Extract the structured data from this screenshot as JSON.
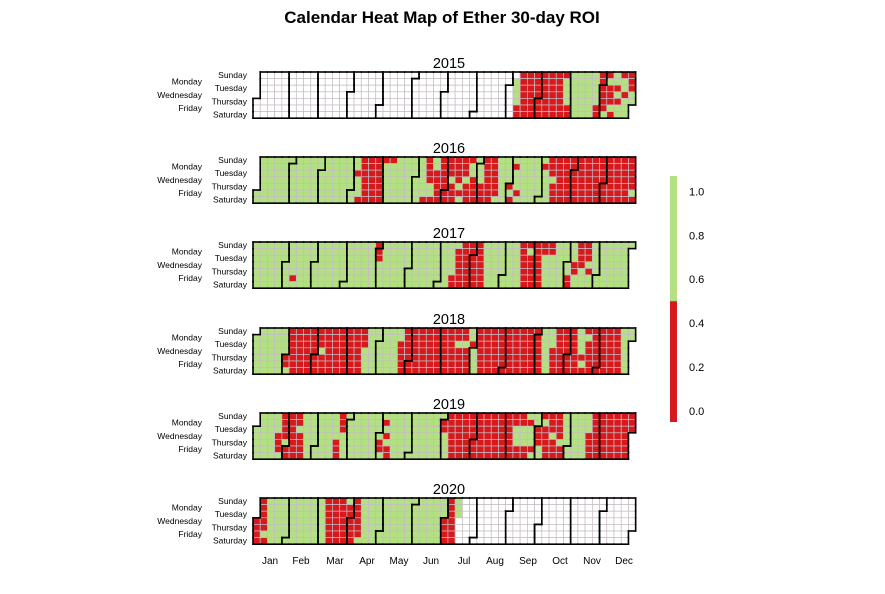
{
  "chart_data": {
    "type": "heatmap",
    "title": "Calendar Heat Map of Ether 30-day ROI",
    "weekday_labels": [
      "Sunday",
      "Monday",
      "Tuesday",
      "Wednesday",
      "Thursday",
      "Friday",
      "Saturday"
    ],
    "month_labels": [
      "Jan",
      "Feb",
      "Mar",
      "Apr",
      "May",
      "Jun",
      "Jul",
      "Aug",
      "Sep",
      "Oct",
      "Nov",
      "Dec"
    ],
    "value_key": {
      "g": "ROI above 0.5 (green)",
      "r": "ROI below 0.5 (red)",
      "-": "no data"
    },
    "years": [
      {
        "year": 2015,
        "weeks": "------- ------- ------- ------- ------- ------- ------- ------- ------- ------- ------- ------- ------- ------- ------- ------- ------- ------- ------- ------- ------- ------- ------- ------- ------- ------- ------- ------- ------- ------- ------- ------- ------- ------- ------- ------- -ggggrr rrrrrrr rrrrrrr rrrrrrr rrrrrrr rrrrrrr rrrrrrr rggggrr ggggggg ggggggg ggggggg gggggrr rrrrrrg rgrrrgr ggrgrgg rggrggg rrrgg--"
      },
      {
        "year": 2016,
        "weeks": "ggggggg ggggggg ggggggg ggggggg ggggggg ggggggg ggggggg ggggggg ggggggg ggggggg ggggggg ggggggg ggggggg ggggggg ggrgggr rrrrrrr rrrrrrr rrrrrrr rgggggg rgggggg ggggggg ggggggg ggggggg ggggggr rrrrggr ggrrrrr rrrrrrr rrrgrrr rrrrgrg rrrgrrr rggrrrr ggggrrr rrrrrrr rrrrrrg ggggggg ggggrgr grgggrg ggggggg ggggggg ggggggg grggggg rrrgrrr rrrrrrr rrrrrrr rrrrrrr rrrrrrr rrrrrrr rrrrrrr rrrrrrr rrrrrrr rrrrrrr rrrrrrr rrrrrgr"
      },
      {
        "year": 2017,
        "weeks": "ggggggg ggggggg ggggggg ggggggg ggggggg gggggrg ggggggg ggggggg ggggggg ggggggg ggggggg ggggggg ggggggg ggggggg ggggggg ggggggg ggggggg rrrgggg ggggggg ggggggg ggggggg ggggggg ggggggg ggggggg ggggggg ggggggg ggggggg gggggrr grrrrrr rrrrrrr rrrrrrr rrrrrrr ggggggg ggggggg ggggggg ggggggg ggggggg rrrrrrr rgrrrrr rrrrrrr rrggggg rrggggg ggggggg gggggrr gggrrgg rrrrggg rrrgrgg ggggggg ggggggg ggggggg ggggggg ggggggg g------"
      },
      {
        "year": 2018,
        "weeks": "-gggggg ggggggg ggggggg ggggggg ggggrrg rrrrrrr rrrrrrr rrrrrrr rrrrrrr rrrgrrr rrrrrrr rrrrrrr rrrrrrr rrrrrrr rrrrrrr rrrgggg ggggggg ggggggg ggggggg ggggggg ggrrrrr rrrrrrr rrrrrrr rrrrrrr rrrrrrr rrrrrrr rrrrrrr rrrrrrr rrgrrrr rrgrrrr ggrgggg rrrrrrr rrrrrrr rrrrrrr rrrrrrr rrrrrrr rrrrrrr rrrrrrr rrrrrrr rrrrrrr ggggggg gggrrrr rrrrrrr rrrrrrr rrrrrrr ggggrgr rgrrrrr rrrrrrr rrrrrrr rrrrrrr rrrrrrr ggggggg gg-----"
      },
      {
        "year": 2019,
        "weeks": "--ggggg ggggggg ggggggg gggrrrg rrrrgrr rrrrrrr rrgrrrr ggggggg ggggggg ggggggg ggggggg ggggrrr rrrgggg ggggggg ggggggg ggggggg ggggggg ggggrrg grgrgrr ggggggg ggggggg ggggggg ggggggg ggggggg ggggggg ggggggg grrgggg rrrrrrr rrrrrrr rrrrrrr rrrrrrr rrrrrrr rrrrrrr rrrrrrr rrrrrrr rrrrrrr rrgggrr rrgggrr grgggrg ggrrrgg rgrrrrr rrrgrrr rrrrgrr ggggggg ggggggg ggggggg gggrrrr rrrrrrr rrrrrrr rrrrrrr rrrrrrr rrrrrrr rrr----"
      },
      {
        "year": 2020,
        "weeks": "---rrrr rrrrrgr ggggggg ggggggg ggggggg ggggggg ggggggg ggggggg ggggggg ggggggg rrrrrrr rrrrrrr rrrrrrr grrrrrr rrrrrrg ggggggg ggggggg ggggggg ggggggg ggggggg ggggggg ggggggg ggggggg ggggggg ggggggg ggggggg gggrrrr rrrrrrr ggg---- ------- ------- ------- ------- ------- ------- ------- ------- ------- ------- ------- ------- ------- ------- ------- ------- ------- ------- ------- ------- ------- ------- -------"
      }
    ],
    "colors": {
      "positive": "#b3e080",
      "negative": "#d7191c",
      "empty": "#ffffff",
      "grid": "#c4bcc4"
    },
    "legend": {
      "placement": "right",
      "ticks": [
        "1.0",
        "0.8",
        "0.6",
        "0.4",
        "0.2",
        "0.0"
      ],
      "tick_values": [
        1.0,
        0.8,
        0.6,
        0.4,
        0.2,
        0.0
      ],
      "range": [
        -0.05,
        1.07
      ],
      "split": 0.5
    }
  }
}
